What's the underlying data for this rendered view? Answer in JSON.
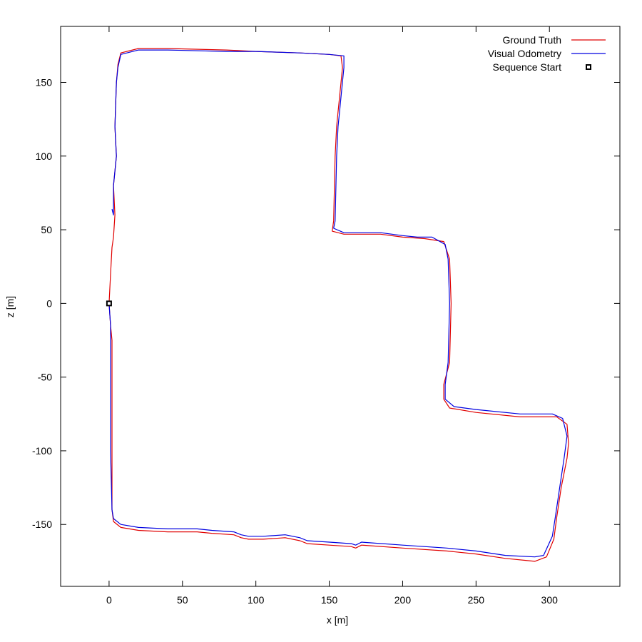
{
  "chart_data": {
    "type": "line",
    "title": "",
    "xlabel": "x [m]",
    "ylabel": "z [m]",
    "xlim": [
      -33,
      348
    ],
    "ylim": [
      -192,
      188
    ],
    "grid": false,
    "legend_position": "top-right",
    "x_ticks": [
      {
        "value": 0,
        "label": "0"
      },
      {
        "value": 50,
        "label": "50"
      },
      {
        "value": 100,
        "label": "100"
      },
      {
        "value": 150,
        "label": "150"
      },
      {
        "value": 200,
        "label": "200"
      },
      {
        "value": 250,
        "label": "250"
      },
      {
        "value": 300,
        "label": "300"
      }
    ],
    "y_ticks": [
      {
        "value": 150,
        "label": "150"
      },
      {
        "value": 100,
        "label": "100"
      },
      {
        "value": 50,
        "label": "50"
      },
      {
        "value": 0,
        "label": "0"
      },
      {
        "value": -50,
        "label": "-50"
      },
      {
        "value": -100,
        "label": "-100"
      },
      {
        "value": -150,
        "label": "-150"
      }
    ],
    "series": [
      {
        "name": "Ground Truth",
        "color": "#e00000",
        "marker": "line",
        "points": [
          [
            0,
            0
          ],
          [
            1,
            -15
          ],
          [
            2,
            -25
          ],
          [
            2,
            -60
          ],
          [
            2,
            -100
          ],
          [
            2,
            -140
          ],
          [
            3,
            -148
          ],
          [
            8,
            -152
          ],
          [
            20,
            -154
          ],
          [
            40,
            -155
          ],
          [
            60,
            -155
          ],
          [
            70,
            -156
          ],
          [
            85,
            -157
          ],
          [
            90,
            -159
          ],
          [
            95,
            -160
          ],
          [
            105,
            -160
          ],
          [
            120,
            -159
          ],
          [
            130,
            -161
          ],
          [
            135,
            -163
          ],
          [
            150,
            -164
          ],
          [
            165,
            -165
          ],
          [
            168,
            -166
          ],
          [
            172,
            -164
          ],
          [
            200,
            -166
          ],
          [
            230,
            -168
          ],
          [
            250,
            -170
          ],
          [
            270,
            -173
          ],
          [
            290,
            -175
          ],
          [
            298,
            -172
          ],
          [
            303,
            -160
          ],
          [
            305,
            -145
          ],
          [
            308,
            -125
          ],
          [
            312,
            -105
          ],
          [
            313,
            -95
          ],
          [
            312,
            -82
          ],
          [
            305,
            -77
          ],
          [
            280,
            -77
          ],
          [
            250,
            -74
          ],
          [
            232,
            -71
          ],
          [
            228,
            -65
          ],
          [
            228,
            -55
          ],
          [
            232,
            -40
          ],
          [
            233,
            0
          ],
          [
            232,
            30
          ],
          [
            228,
            42
          ],
          [
            215,
            44
          ],
          [
            200,
            45
          ],
          [
            185,
            47
          ],
          [
            160,
            47
          ],
          [
            152,
            49
          ],
          [
            153,
            56
          ],
          [
            154,
            100
          ],
          [
            155,
            120
          ],
          [
            156,
            130
          ],
          [
            157,
            140
          ],
          [
            159,
            160
          ],
          [
            158,
            168
          ],
          [
            150,
            169
          ],
          [
            130,
            170
          ],
          [
            100,
            171
          ],
          [
            80,
            172
          ],
          [
            40,
            173
          ],
          [
            20,
            173
          ],
          [
            8,
            170
          ],
          [
            6,
            162
          ],
          [
            5,
            150
          ],
          [
            4,
            120
          ],
          [
            5,
            100
          ],
          [
            3,
            80
          ],
          [
            4,
            60
          ],
          [
            3,
            45
          ],
          [
            2,
            38
          ],
          [
            1,
            20
          ],
          [
            0,
            0
          ]
        ]
      },
      {
        "name": "Visual Odometry",
        "color": "#0000e0",
        "marker": "line",
        "points": [
          [
            0,
            0
          ],
          [
            1,
            -15
          ],
          [
            1,
            -25
          ],
          [
            1,
            -60
          ],
          [
            1,
            -100
          ],
          [
            2,
            -140
          ],
          [
            3,
            -146
          ],
          [
            8,
            -150
          ],
          [
            20,
            -152
          ],
          [
            40,
            -153
          ],
          [
            60,
            -153
          ],
          [
            70,
            -154
          ],
          [
            85,
            -155
          ],
          [
            90,
            -157
          ],
          [
            95,
            -158
          ],
          [
            105,
            -158
          ],
          [
            120,
            -157
          ],
          [
            130,
            -159
          ],
          [
            135,
            -161
          ],
          [
            150,
            -162
          ],
          [
            165,
            -163
          ],
          [
            168,
            -164
          ],
          [
            172,
            -162
          ],
          [
            200,
            -164
          ],
          [
            230,
            -166
          ],
          [
            250,
            -168
          ],
          [
            270,
            -171
          ],
          [
            290,
            -172
          ],
          [
            296,
            -171
          ],
          [
            302,
            -158
          ],
          [
            304,
            -145
          ],
          [
            307,
            -125
          ],
          [
            310,
            -105
          ],
          [
            312,
            -90
          ],
          [
            309,
            -78
          ],
          [
            302,
            -75
          ],
          [
            280,
            -75
          ],
          [
            250,
            -72
          ],
          [
            235,
            -70
          ],
          [
            229,
            -65
          ],
          [
            229,
            -55
          ],
          [
            231,
            -40
          ],
          [
            232,
            0
          ],
          [
            231,
            30
          ],
          [
            229,
            40
          ],
          [
            220,
            45
          ],
          [
            210,
            45
          ],
          [
            200,
            46
          ],
          [
            185,
            48
          ],
          [
            160,
            48
          ],
          [
            153,
            51
          ],
          [
            154,
            56
          ],
          [
            155,
            100
          ],
          [
            156,
            120
          ],
          [
            157,
            130
          ],
          [
            158,
            140
          ],
          [
            160,
            160
          ],
          [
            160,
            168
          ],
          [
            150,
            169
          ],
          [
            130,
            170
          ],
          [
            100,
            171
          ],
          [
            80,
            171
          ],
          [
            40,
            172
          ],
          [
            20,
            172
          ],
          [
            8,
            169
          ],
          [
            6,
            160
          ],
          [
            5,
            150
          ],
          [
            4,
            120
          ],
          [
            5,
            100
          ],
          [
            3,
            80
          ],
          [
            3,
            60
          ],
          [
            2,
            64
          ]
        ]
      },
      {
        "name": "Sequence Start",
        "color": "#000000",
        "marker": "square",
        "points": [
          [
            0,
            0
          ]
        ]
      }
    ]
  }
}
